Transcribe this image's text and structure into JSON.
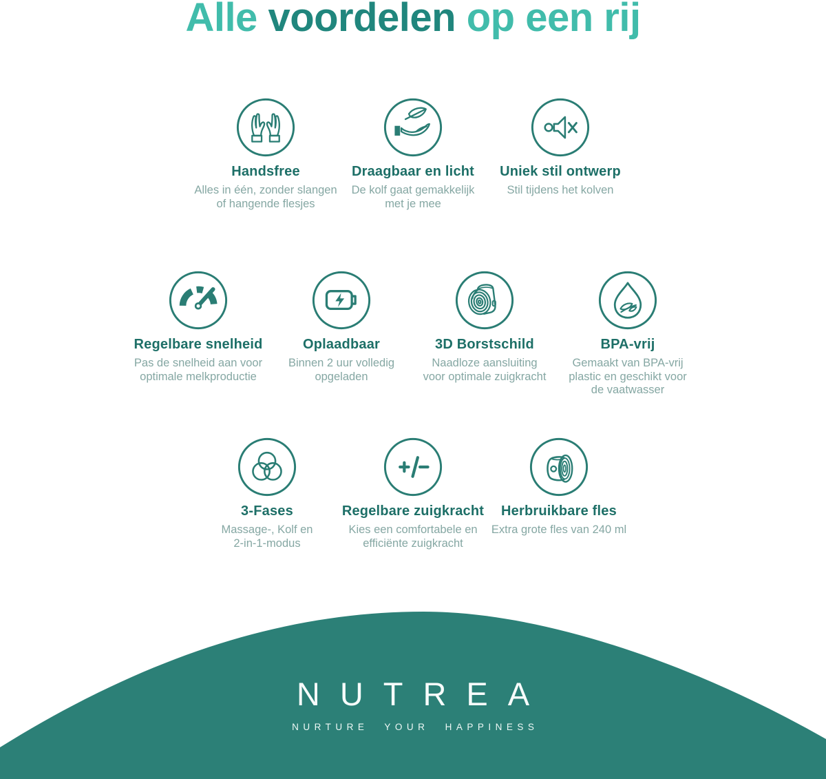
{
  "title": {
    "segments": [
      {
        "text": "Alle ",
        "tone": "light"
      },
      {
        "text": "voordelen",
        "tone": "dark"
      },
      {
        "text": " op een rij",
        "tone": "light"
      }
    ]
  },
  "features": {
    "rows": [
      {
        "items": [
          {
            "icon": "cupped-hands-icon",
            "title": "Handsfree",
            "description": "Alles in één, zonder slangen\nof hangende flesjes"
          },
          {
            "icon": "leaf-on-hand-icon",
            "title": "Draagbaar en licht",
            "description": "De kolf gaat gemakkelijk\nmet je mee"
          },
          {
            "icon": "muted-speaker-icon",
            "title": "Uniek stil ontwerp",
            "description": "Stil tijdens het kolven"
          }
        ]
      },
      {
        "items": [
          {
            "icon": "speedometer-icon",
            "title": "Regelbare snelheid",
            "description": "Pas de snelheid aan voor\noptimale melkproductie"
          },
          {
            "icon": "battery-charging-icon",
            "title": "Oplaadbaar",
            "description": "Binnen 2 uur volledig\nopgeladen"
          },
          {
            "icon": "breast-shield-icon",
            "title": "3D Borstschild",
            "description": "Naadloze aansluiting\nvoor optimale zuigkracht"
          },
          {
            "icon": "drop-leaves-icon",
            "title": "BPA-vrij",
            "description": "Gemaakt van BPA-vrij\nplastic en geschikt voor\nde vaatwasser"
          }
        ]
      },
      {
        "items": [
          {
            "icon": "three-circles-icon",
            "title": "3-Fases",
            "description": "Massage-, Kolf en\n2-in-1-modus"
          },
          {
            "icon": "plus-minus-icon",
            "title": "Regelbare zuigkracht",
            "description": "Kies een comfortabele en\nefficiënte zuigkracht"
          },
          {
            "icon": "reusable-bottle-icon",
            "title": "Herbruikbare fles",
            "description": "Extra grote fles van 240 ml"
          }
        ]
      }
    ]
  },
  "footer": {
    "brand": "NUTREA",
    "tagline": "NURTURE YOUR HAPPINESS"
  },
  "colors": {
    "title_light": "#41BCAB",
    "title_dark": "#20867D",
    "heading": "#1D6F67",
    "accent": "#2A7D74",
    "body_text": "#85A7A3",
    "dome": "#2C8077"
  }
}
